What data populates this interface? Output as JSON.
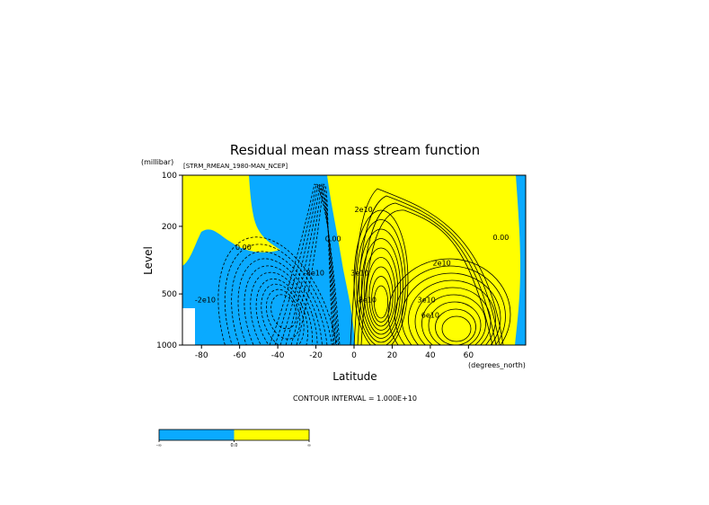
{
  "chart_data": {
    "type": "contour",
    "title": "Residual mean mass stream function",
    "subtitle": "[STRM_RMEAN_1980-MAN_NCEP]",
    "xlabel": "Latitude",
    "xunits": "(degrees_north)",
    "ylabel": "Level",
    "yunits": "(millibar)",
    "xlim": [
      -90,
      90
    ],
    "ylim": [
      1000,
      100
    ],
    "yscale": "log",
    "xticks": [
      -80,
      -60,
      -40,
      -20,
      0,
      20,
      40,
      60
    ],
    "xtick_labels": [
      "-80",
      "-60",
      "-40",
      "-20",
      "0",
      "20",
      "40",
      "60"
    ],
    "yticks": [
      100,
      200,
      500,
      1000
    ],
    "ytick_labels": [
      "100",
      "200",
      "500",
      "1000"
    ],
    "contour_interval_text": "CONTOUR INTERVAL = 1.000E+10",
    "fill_colors": {
      "negative": "#0aaaff",
      "positive": "#ffff00"
    },
    "contour_labels": [
      {
        "text": "0.00",
        "lat": -58,
        "lev": 275
      },
      {
        "text": "-2e10",
        "lat": -78,
        "lev": 560
      },
      {
        "text": "-8e10",
        "lat": -21,
        "lev": 390
      },
      {
        "text": "0.00",
        "lat": -11,
        "lev": 245
      },
      {
        "text": "2e10",
        "lat": 5,
        "lev": 165
      },
      {
        "text": "3e10",
        "lat": 3,
        "lev": 390
      },
      {
        "text": "8e10",
        "lat": 7,
        "lev": 560
      },
      {
        "text": "2e10",
        "lat": 46,
        "lev": 340
      },
      {
        "text": "3e10",
        "lat": 38,
        "lev": 560
      },
      {
        "text": "6e10",
        "lat": 40,
        "lev": 690
      },
      {
        "text": "0.00",
        "lat": 77,
        "lev": 240
      }
    ],
    "colorbar": {
      "segments": [
        {
          "color": "#0aaaff",
          "range": [
            -1e+30,
            0
          ]
        },
        {
          "color": "#ffff00",
          "range": [
            0,
            1e+30
          ]
        }
      ],
      "tick_labels": [
        "-∞",
        "0.0",
        "∞"
      ]
    }
  }
}
